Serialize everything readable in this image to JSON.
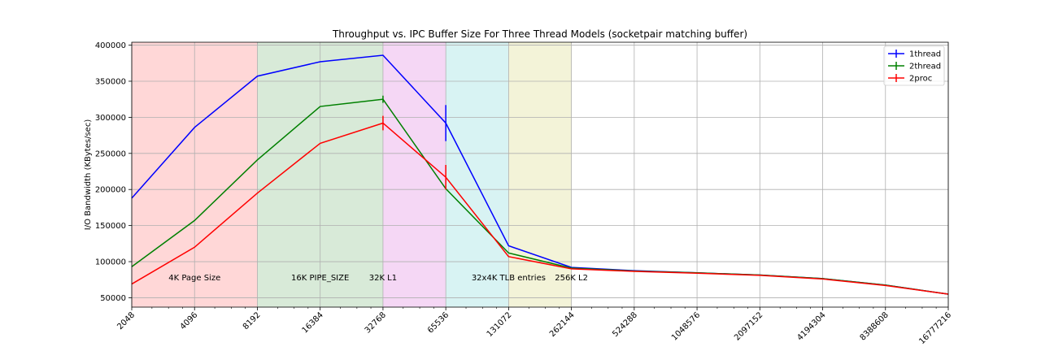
{
  "chart_data": {
    "type": "line",
    "title": "Throughput vs. IPC Buffer Size For Three Thread Models (socketpair matching buffer)",
    "xlabel": "",
    "ylabel": "I/O Bandwidth (KBytes/sec)",
    "xscale": "log2",
    "xlim": [
      2048,
      16777216
    ],
    "ylim": [
      37000,
      404000
    ],
    "grid": true,
    "legend_position": "top-right",
    "x_ticks": [
      "2048",
      "4096",
      "8192",
      "16384",
      "32768",
      "65536",
      "131072",
      "262144",
      "524288",
      "1048576",
      "2097152",
      "4194304",
      "8388608",
      "16777216"
    ],
    "y_ticks": [
      "50000",
      "100000",
      "150000",
      "200000",
      "250000",
      "300000",
      "350000",
      "400000"
    ],
    "regions": [
      {
        "from": 2048,
        "to": 8192,
        "color": "#ffd7d7",
        "label": "4K Page Size",
        "label_x": 4096
      },
      {
        "from": 8192,
        "to": 32768,
        "color": "#d8ead8",
        "label": "16K PIPE_SIZE",
        "label_x": 16384
      },
      {
        "from": 32768,
        "to": 65536,
        "color": "#f5d7f5",
        "label": "32K L1",
        "label_x": 32768
      },
      {
        "from": 65536,
        "to": 131072,
        "color": "#d8f3f3",
        "label": "32x4K TLB entries",
        "label_x": 131072
      },
      {
        "from": 131072,
        "to": 262144,
        "color": "#f3f3d8",
        "label": "256K L2",
        "label_x": 262144
      }
    ],
    "x": [
      2048,
      4096,
      8192,
      16384,
      32768,
      65536,
      131072,
      262144,
      524288,
      1048576,
      2097152,
      4194304,
      8388608,
      16777216
    ],
    "series": [
      {
        "name": "1thread",
        "color": "#0000ff",
        "values": [
          188000,
          286000,
          357000,
          377000,
          386000,
          292000,
          122000,
          92000,
          87500,
          84500,
          81500,
          76500,
          67500,
          55000
        ],
        "errors": [
          0,
          0,
          0,
          0,
          0,
          25000,
          0,
          0,
          0,
          0,
          0,
          0,
          0,
          0
        ]
      },
      {
        "name": "2thread",
        "color": "#008000",
        "values": [
          93000,
          157000,
          241000,
          315000,
          325000,
          201000,
          112000,
          91000,
          87000,
          84500,
          81500,
          76500,
          67500,
          55000
        ],
        "errors": [
          0,
          0,
          0,
          0,
          5000,
          0,
          0,
          0,
          0,
          0,
          0,
          0,
          0,
          0
        ]
      },
      {
        "name": "2proc",
        "color": "#ff0000",
        "values": [
          69000,
          120000,
          195000,
          264000,
          292000,
          217000,
          107000,
          90000,
          86500,
          84000,
          81000,
          76000,
          67000,
          55000
        ],
        "errors": [
          0,
          0,
          0,
          0,
          10000,
          17000,
          0,
          0,
          0,
          0,
          0,
          0,
          0,
          0
        ]
      }
    ]
  }
}
